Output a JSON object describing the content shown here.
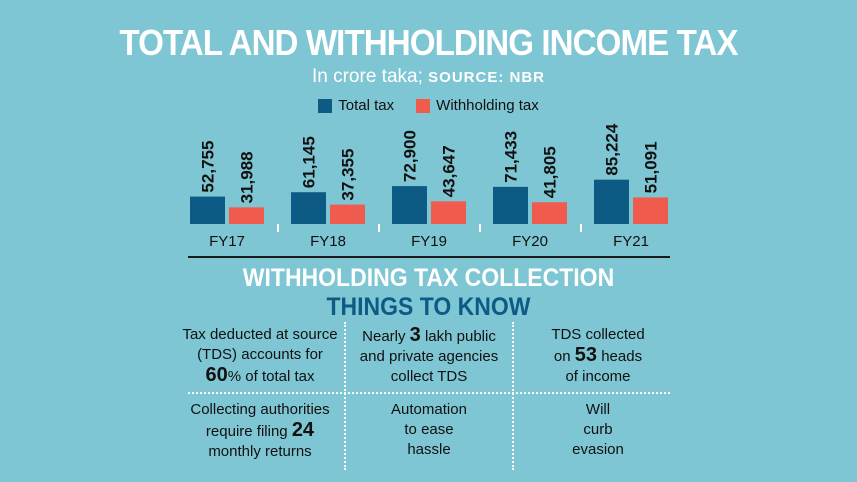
{
  "header": {
    "title": "TOTAL AND WITHHOLDING INCOME TAX",
    "subtitle": "In crore taka; ",
    "source": "SOURCE: NBR"
  },
  "legend": {
    "total_label": "Total tax",
    "withholding_label": "Withholding tax"
  },
  "colors": {
    "total": "#0d5b85",
    "withholding": "#ef5b4c"
  },
  "chart_data": {
    "type": "bar",
    "categories": [
      "FY17",
      "FY18",
      "FY19",
      "FY20",
      "FY21"
    ],
    "series": [
      {
        "name": "Total tax",
        "values": [
          52755,
          61145,
          72900,
          71433,
          85224
        ],
        "labels": [
          "52,755",
          "61,145",
          "72,900",
          "71,433",
          "85,224"
        ]
      },
      {
        "name": "Withholding tax",
        "values": [
          31988,
          37355,
          43647,
          41805,
          51091
        ],
        "labels": [
          "31,988",
          "37,355",
          "43,647",
          "41,805",
          "51,091"
        ]
      }
    ],
    "ylim": [
      0,
      100000
    ]
  },
  "section": {
    "heading": "WITHHOLDING TAX COLLECTION",
    "subheading": "THINGS TO KNOW"
  },
  "facts": {
    "f1_a": "Tax deducted at source",
    "f1_b": "(TDS) accounts for",
    "f1_num": "60",
    "f1_c": "% of total tax",
    "f2_a": "Nearly ",
    "f2_num": "3",
    "f2_b": " lakh public",
    "f2_c": "and private agencies",
    "f2_d": "collect TDS",
    "f3_a": "TDS collected",
    "f3_b": "on ",
    "f3_num": "53",
    "f3_c": " heads",
    "f3_d": "of income",
    "f4_a": "Collecting authorities",
    "f4_b": "require filing ",
    "f4_num": "24",
    "f4_c": "monthly returns",
    "f5_a": "Automation",
    "f5_b": "to ease",
    "f5_c": "hassle",
    "f6_a": "Will",
    "f6_b": "curb",
    "f6_c": "evasion"
  }
}
